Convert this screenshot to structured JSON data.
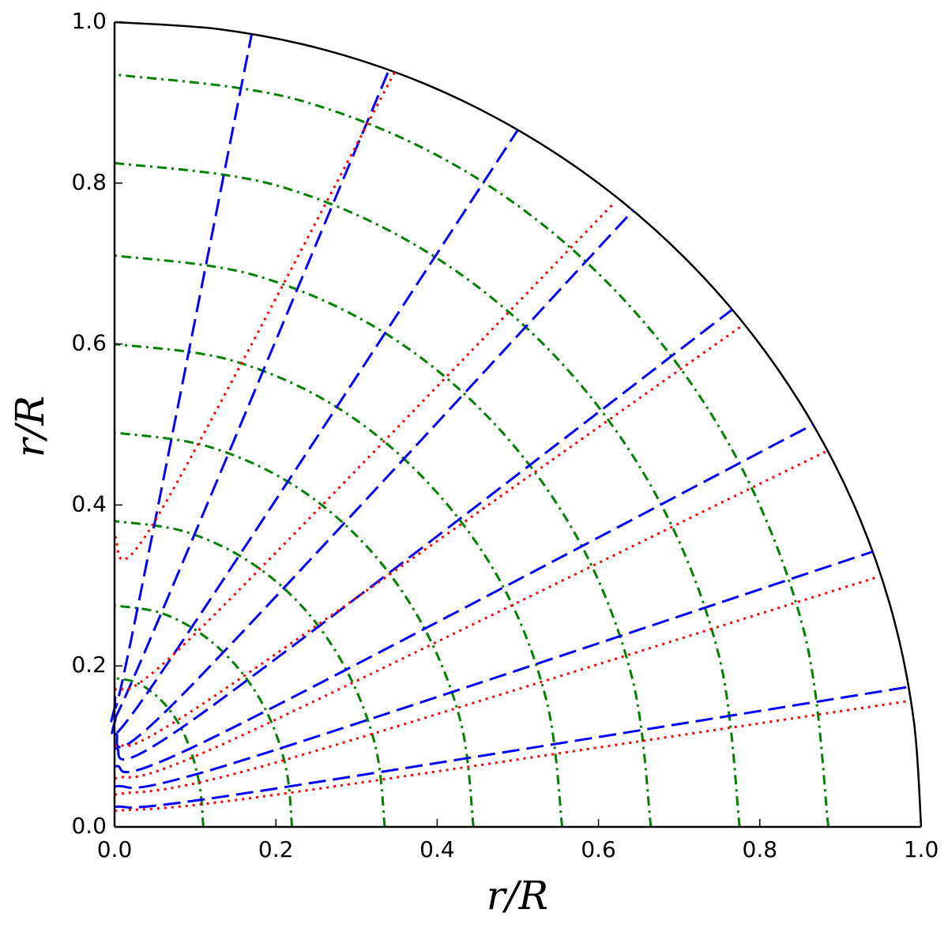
{
  "chart_data": {
    "type": "line",
    "xlabel": "r/R",
    "ylabel": "r/R",
    "xlim": [
      0,
      1
    ],
    "ylim": [
      0,
      1
    ],
    "xticks": [
      {
        "value": 0,
        "label": "0.0"
      },
      {
        "value": 0.2,
        "label": "0.2"
      },
      {
        "value": 0.4,
        "label": "0.4"
      },
      {
        "value": 0.6,
        "label": "0.6"
      },
      {
        "value": 0.8,
        "label": "0.8"
      },
      {
        "value": 1,
        "label": "1.0"
      }
    ],
    "yticks": [
      {
        "value": 0,
        "label": "0.0"
      },
      {
        "value": 0.2,
        "label": "0.2"
      },
      {
        "value": 0.4,
        "label": "0.4"
      },
      {
        "value": 0.6,
        "label": "0.6"
      },
      {
        "value": 0.8,
        "label": "0.8"
      },
      {
        "value": 1,
        "label": "1.0"
      }
    ],
    "series": [
      {
        "color": "#000000",
        "linestyle": "solid",
        "x": [
          1,
          0.991,
          0.966,
          0.924,
          0.866,
          0.793,
          0.707,
          0.609,
          0.5,
          0.383,
          0.259,
          0.131,
          0
        ],
        "values": [
          0,
          0.131,
          0.259,
          0.383,
          0.5,
          0.609,
          0.707,
          0.793,
          0.866,
          0.924,
          0.966,
          0.991,
          1
        ]
      },
      {
        "color": "#007f00",
        "linestyle": "dashdot",
        "x": [
          0.885,
          0.855,
          0.766,
          0.626,
          0.443,
          0.229,
          0
        ],
        "values": [
          0,
          0.242,
          0.468,
          0.661,
          0.81,
          0.903,
          0.935
        ]
      },
      {
        "color": "#007f00",
        "linestyle": "dashdot",
        "x": [
          0.775,
          0.749,
          0.671,
          0.548,
          0.388,
          0.201,
          0
        ],
        "values": [
          0,
          0.214,
          0.413,
          0.583,
          0.714,
          0.797,
          0.825
        ]
      },
      {
        "color": "#007f00",
        "linestyle": "dashdot",
        "x": [
          0.665,
          0.642,
          0.576,
          0.47,
          0.333,
          0.172,
          0
        ],
        "values": [
          0,
          0.184,
          0.355,
          0.502,
          0.615,
          0.686,
          0.71
        ]
      },
      {
        "color": "#007f00",
        "linestyle": "dashdot",
        "x": [
          0.555,
          0.536,
          0.481,
          0.392,
          0.278,
          0.144,
          0
        ],
        "values": [
          0,
          0.155,
          0.3,
          0.424,
          0.52,
          0.58,
          0.6
        ]
      },
      {
        "color": "#007f00",
        "linestyle": "dashdot",
        "x": [
          0.445,
          0.43,
          0.385,
          0.315,
          0.223,
          0.115,
          0
        ],
        "values": [
          0,
          0.127,
          0.245,
          0.346,
          0.424,
          0.473,
          0.49
        ]
      },
      {
        "color": "#007f00",
        "linestyle": "dashdot",
        "x": [
          0.335,
          0.324,
          0.29,
          0.237,
          0.168,
          0.087,
          0
        ],
        "values": [
          0,
          0.098,
          0.19,
          0.269,
          0.329,
          0.367,
          0.38
        ]
      },
      {
        "color": "#007f00",
        "linestyle": "dashdot",
        "x": [
          0.22,
          0.213,
          0.191,
          0.156,
          0.11,
          0.057,
          0
        ],
        "values": [
          0,
          0.071,
          0.138,
          0.194,
          0.238,
          0.266,
          0.275
        ]
      },
      {
        "color": "#007f00",
        "linestyle": "dashdot",
        "x": [
          0.11,
          0.106,
          0.095,
          0.078,
          0.055,
          0.028,
          0
        ],
        "values": [
          0,
          0.048,
          0.093,
          0.131,
          0.16,
          0.179,
          0.185
        ]
      },
      {
        "color": "#0000ff",
        "linestyle": "dashed",
        "x": [
          0,
          0.15,
          0.985
        ],
        "values": [
          0.025,
          0.04,
          0.174
        ]
      },
      {
        "color": "#0000ff",
        "linestyle": "dashed",
        "x": [
          0,
          0.15,
          0.94
        ],
        "values": [
          0.05,
          0.08,
          0.342
        ]
      },
      {
        "color": "#0000ff",
        "linestyle": "dashed",
        "x": [
          0,
          0.12,
          0.866
        ],
        "values": [
          0.075,
          0.11,
          0.5
        ]
      },
      {
        "color": "#0000ff",
        "linestyle": "dashed",
        "x": [
          0,
          0.1,
          0.766
        ],
        "values": [
          0.097,
          0.135,
          0.643
        ]
      },
      {
        "color": "#0000ff",
        "linestyle": "dashed",
        "x": [
          0,
          0.08,
          0.643
        ],
        "values": [
          0.115,
          0.16,
          0.766
        ]
      },
      {
        "color": "#0000ff",
        "linestyle": "dashed",
        "x": [
          0,
          0.05,
          0.5
        ],
        "values": [
          0.135,
          0.18,
          0.866
        ]
      },
      {
        "color": "#0000ff",
        "linestyle": "dashed",
        "x": [
          0,
          0.03,
          0.34
        ],
        "values": [
          0.15,
          0.2,
          0.94
        ]
      },
      {
        "color": "#0000ff",
        "linestyle": "dashed",
        "x": [
          0,
          0.02,
          0.17
        ],
        "values": [
          0.16,
          0.23,
          0.985
        ]
      },
      {
        "color": "#ff0000",
        "linestyle": "dotted",
        "x": [
          0,
          0.2,
          0.982
        ],
        "values": [
          0.02,
          0.04,
          0.156
        ]
      },
      {
        "color": "#ff0000",
        "linestyle": "dotted",
        "x": [
          0,
          0.2,
          0.948
        ],
        "values": [
          0.04,
          0.08,
          0.311
        ]
      },
      {
        "color": "#ff0000",
        "linestyle": "dotted",
        "x": [
          0,
          0.15,
          0.881
        ],
        "values": [
          0.06,
          0.11,
          0.466
        ]
      },
      {
        "color": "#ff0000",
        "linestyle": "dotted",
        "x": [
          0,
          0.12,
          0.777
        ],
        "values": [
          0.1,
          0.16,
          0.622
        ]
      },
      {
        "color": "#ff0000",
        "linestyle": "dotted",
        "x": [
          0,
          0.1,
          0.62
        ],
        "values": [
          0.17,
          0.24,
          0.776
        ]
      },
      {
        "color": "#ff0000",
        "linestyle": "dotted",
        "x": [
          0,
          0.05,
          0.348
        ],
        "values": [
          0.36,
          0.38,
          0.939
        ]
      }
    ]
  }
}
